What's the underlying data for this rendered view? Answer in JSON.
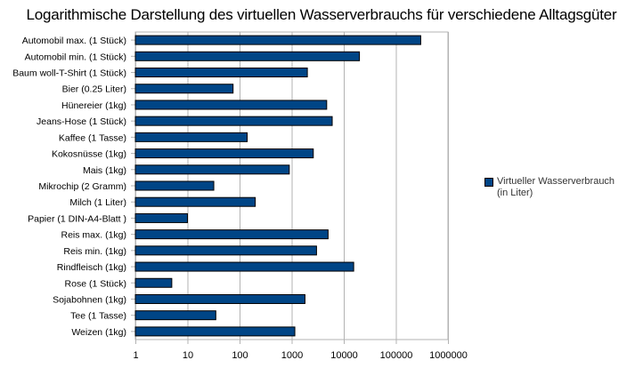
{
  "chart_data": {
    "type": "bar",
    "orientation": "horizontal",
    "title": "Logarithmische Darstellung des virtuellen Wasserverbrauchs für verschiedene Alltagsgüter",
    "xlabel": "",
    "ylabel": "",
    "scale": "log",
    "xlim": [
      1,
      1000000
    ],
    "ticks": [
      "1",
      "10",
      "100",
      "1000",
      "10000",
      "100000",
      "1000000"
    ],
    "grid": true,
    "legend_position": "right",
    "categories": [
      "Automobil max. (1 Stück)",
      "Automobil min. (1 Stück)",
      "Baum woll-T-Shirt (1 Stück)",
      "Bier (0.25 Liter)",
      "Hünereier (1kg)",
      "Jeans-Hose (1 Stück)",
      "Kaffee (1 Tasse)",
      "Kokosnüsse (1kg)",
      "Mais (1kg)",
      "Mikrochip (2 Gramm)",
      "Milch (1 Liter)",
      "Papier (1 DIN-A4-Blatt )",
      "Reis max. (1kg)",
      "Reis min. (1kg)",
      "Rindfleisch (1kg)",
      "Rose (1 Stück)",
      "Sojabohnen (1kg)",
      "Tee (1 Tasse)",
      "Weizen (1kg)"
    ],
    "series": [
      {
        "name": "Virtueller Wasserverbrauch (in Liter)",
        "legend_lines": [
          "Virtueller Wasserverbrauch",
          "(in Liter)"
        ],
        "color": "#004586",
        "values": [
          300000,
          20000,
          2000,
          75,
          4700,
          6000,
          140,
          2600,
          900,
          32,
          200,
          10,
          5000,
          3000,
          15500,
          5,
          1800,
          35,
          1150
        ]
      }
    ]
  }
}
